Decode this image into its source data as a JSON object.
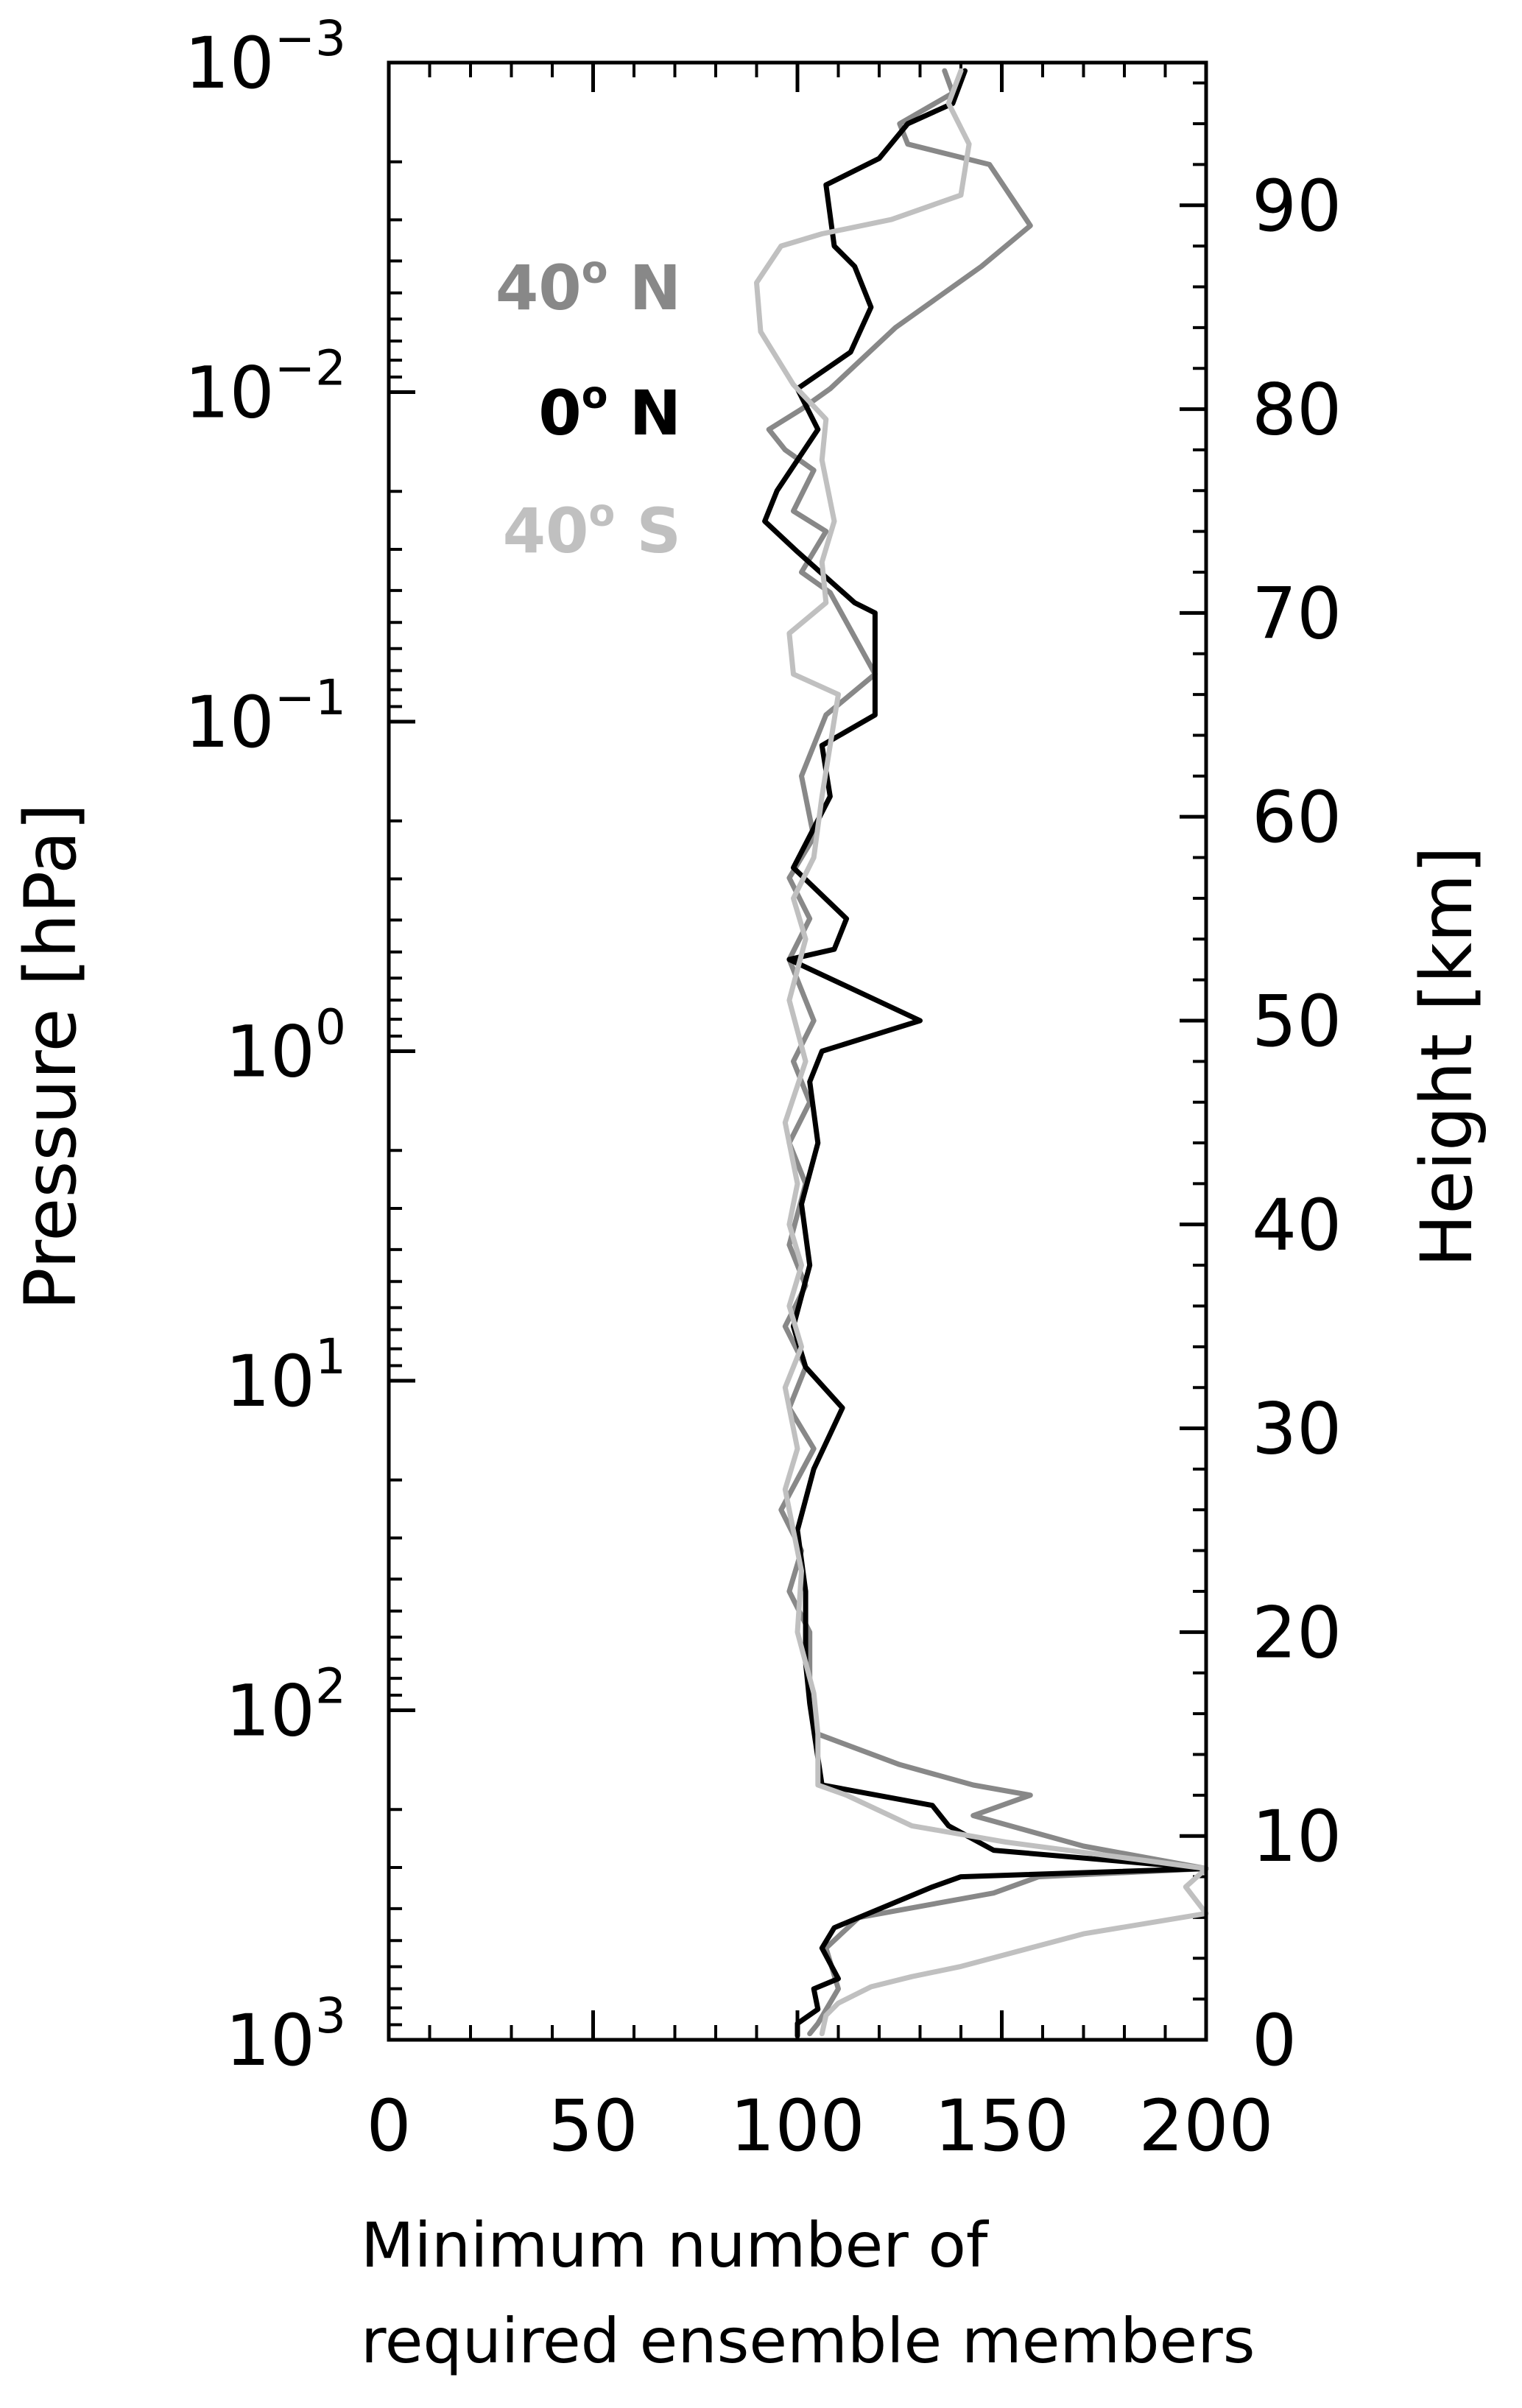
{
  "chart_data": {
    "type": "line",
    "title": "",
    "xlabel_lines": [
      "Minimum number of",
      "required ensemble members"
    ],
    "ylabel_left": "Pressure [hPa]",
    "ylabel_right": "Height [km]",
    "xlim": [
      0,
      200
    ],
    "ylim_pressure_hpa": [
      1000,
      0.001
    ],
    "y_scale": "log",
    "ylim_height_km": [
      0,
      97
    ],
    "x_ticks": [
      "0",
      "50",
      "100",
      "150",
      "200"
    ],
    "y_left_ticks": [
      {
        "base": "10",
        "exp": "−3"
      },
      {
        "base": "10",
        "exp": "−2"
      },
      {
        "base": "10",
        "exp": "−1"
      },
      {
        "base": "10",
        "exp": "0"
      },
      {
        "base": "10",
        "exp": "1"
      },
      {
        "base": "10",
        "exp": "2"
      },
      {
        "base": "10",
        "exp": "3"
      }
    ],
    "y_right_ticks": [
      "0",
      "10",
      "20",
      "30",
      "40",
      "50",
      "60",
      "70",
      "80",
      "90"
    ],
    "legend_placement": "top-left inside plot",
    "series": [
      {
        "name": "40° N",
        "legend": {
          "main": "40",
          "deg": "o",
          "suffix": " N"
        },
        "color": "#888888",
        "points": [
          [
            136,
            96.6
          ],
          [
            138,
            95.5
          ],
          [
            125,
            94
          ],
          [
            127,
            93
          ],
          [
            147,
            92
          ],
          [
            157,
            89
          ],
          [
            145,
            87
          ],
          [
            124,
            84
          ],
          [
            108,
            81
          ],
          [
            101,
            80
          ],
          [
            93,
            79
          ],
          [
            97,
            78
          ],
          [
            104,
            77
          ],
          [
            99,
            75
          ],
          [
            107,
            74
          ],
          [
            101,
            72
          ],
          [
            108,
            71
          ],
          [
            119,
            67
          ],
          [
            107,
            65
          ],
          [
            101,
            62
          ],
          [
            104,
            59
          ],
          [
            98,
            57
          ],
          [
            103,
            55
          ],
          [
            98,
            53
          ],
          [
            104,
            50
          ],
          [
            99,
            48
          ],
          [
            103,
            46
          ],
          [
            98,
            44
          ],
          [
            102,
            42
          ],
          [
            98,
            39
          ],
          [
            102,
            37
          ],
          [
            97,
            35
          ],
          [
            102,
            33
          ],
          [
            98,
            31
          ],
          [
            104,
            29
          ],
          [
            96,
            26
          ],
          [
            101,
            24
          ],
          [
            98,
            22
          ],
          [
            103,
            20
          ],
          [
            103,
            17
          ],
          [
            105,
            15
          ],
          [
            125,
            13.5
          ],
          [
            143,
            12.5
          ],
          [
            157,
            12
          ],
          [
            143,
            11
          ],
          [
            170,
            9.5
          ],
          [
            200,
            8.4
          ],
          [
            159,
            8
          ],
          [
            148,
            7.2
          ],
          [
            115,
            6
          ],
          [
            107,
            4.5
          ],
          [
            110,
            2.5
          ],
          [
            105,
            0.8
          ],
          [
            103,
            0.3
          ]
        ]
      },
      {
        "name": "0° N",
        "legend": {
          "main": "0",
          "deg": "o",
          "suffix": " N"
        },
        "color": "#000000",
        "points": [
          [
            141,
            96.6
          ],
          [
            138,
            95
          ],
          [
            127,
            94
          ],
          [
            120,
            92.3
          ],
          [
            107,
            91
          ],
          [
            109,
            88
          ],
          [
            114,
            87
          ],
          [
            118,
            85
          ],
          [
            113,
            82.8
          ],
          [
            100,
            81
          ],
          [
            105,
            79
          ],
          [
            95,
            76
          ],
          [
            92,
            74.5
          ],
          [
            100,
            73
          ],
          [
            114,
            70.5
          ],
          [
            119,
            70
          ],
          [
            119,
            65
          ],
          [
            106,
            63.5
          ],
          [
            108,
            61
          ],
          [
            99,
            57.5
          ],
          [
            112,
            55
          ],
          [
            109,
            53.5
          ],
          [
            98,
            53
          ],
          [
            130,
            50
          ],
          [
            106,
            48.5
          ],
          [
            103,
            47
          ],
          [
            105,
            44
          ],
          [
            101,
            41
          ],
          [
            103,
            38
          ],
          [
            99,
            35
          ],
          [
            102,
            33
          ],
          [
            111,
            31
          ],
          [
            104,
            28
          ],
          [
            100,
            25
          ],
          [
            102,
            22
          ],
          [
            102,
            18.5
          ],
          [
            103,
            16.5
          ],
          [
            106,
            12.5
          ],
          [
            133,
            11.5
          ],
          [
            137,
            10.5
          ],
          [
            148,
            9.3
          ],
          [
            200,
            8.4
          ],
          [
            140,
            8
          ],
          [
            133,
            7.5
          ],
          [
            109,
            5.5
          ],
          [
            106,
            4.5
          ],
          [
            110,
            3
          ],
          [
            104,
            2.5
          ],
          [
            105,
            1.5
          ],
          [
            100,
            0.8
          ],
          [
            100,
            0.2
          ]
        ]
      },
      {
        "name": "40° S",
        "legend": {
          "main": "40",
          "deg": "o",
          "suffix": " S"
        },
        "color": "#c0c0c0",
        "points": [
          [
            140,
            96.6
          ],
          [
            137,
            95
          ],
          [
            142,
            93
          ],
          [
            140,
            90.5
          ],
          [
            123,
            89.3
          ],
          [
            106,
            88.6
          ],
          [
            96,
            88
          ],
          [
            90,
            86.2
          ],
          [
            91,
            83.8
          ],
          [
            99,
            81.2
          ],
          [
            107,
            79.5
          ],
          [
            106,
            77.5
          ],
          [
            109,
            74.5
          ],
          [
            106,
            72.5
          ],
          [
            107,
            70.5
          ],
          [
            98,
            69
          ],
          [
            99,
            67
          ],
          [
            110,
            66
          ],
          [
            106,
            61
          ],
          [
            104,
            58
          ],
          [
            99,
            56
          ],
          [
            102,
            54
          ],
          [
            98,
            51
          ],
          [
            102,
            48
          ],
          [
            97,
            45
          ],
          [
            100,
            42
          ],
          [
            98,
            40
          ],
          [
            101,
            38
          ],
          [
            98,
            36
          ],
          [
            101,
            34
          ],
          [
            97,
            32
          ],
          [
            100,
            29
          ],
          [
            97,
            27
          ],
          [
            101,
            23
          ],
          [
            100,
            20
          ],
          [
            104,
            17
          ],
          [
            105,
            15
          ],
          [
            105,
            12.5
          ],
          [
            112,
            12
          ],
          [
            128,
            10.5
          ],
          [
            151,
            9.7
          ],
          [
            200,
            8.4
          ],
          [
            195,
            7.5
          ],
          [
            200,
            6.2
          ],
          [
            170,
            5.2
          ],
          [
            140,
            3.6
          ],
          [
            128,
            3.1
          ],
          [
            118,
            2.6
          ],
          [
            110,
            1.8
          ],
          [
            107,
            1.2
          ],
          [
            106,
            0.3
          ]
        ]
      }
    ]
  }
}
